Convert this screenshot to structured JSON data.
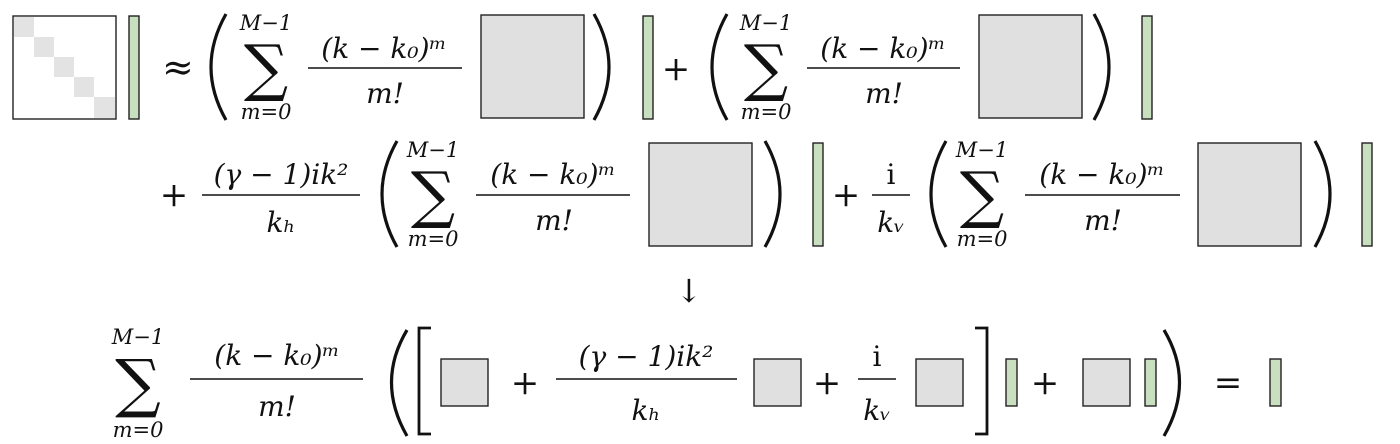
{
  "colors": {
    "matrix_fill": "#e0e0e0",
    "vector_fill": "#c8dfc0",
    "diagonal_fill": "#e3e3e3",
    "ink": "#111111"
  },
  "symbols": {
    "approx": "≈",
    "plus": "+",
    "equals": "=",
    "arrow": "↓",
    "sigma": "∑"
  },
  "sum": {
    "upper": "M−1",
    "lower": "m=0",
    "numerator": "(k − k₀)ᵐ",
    "denominator": "m!"
  },
  "coefficients": {
    "horizontal_numerator": "(γ − 1)ik²",
    "horizontal_denominator": "kₕ",
    "vertical_numerator": "i",
    "vertical_denominator": "kᵥ"
  }
}
